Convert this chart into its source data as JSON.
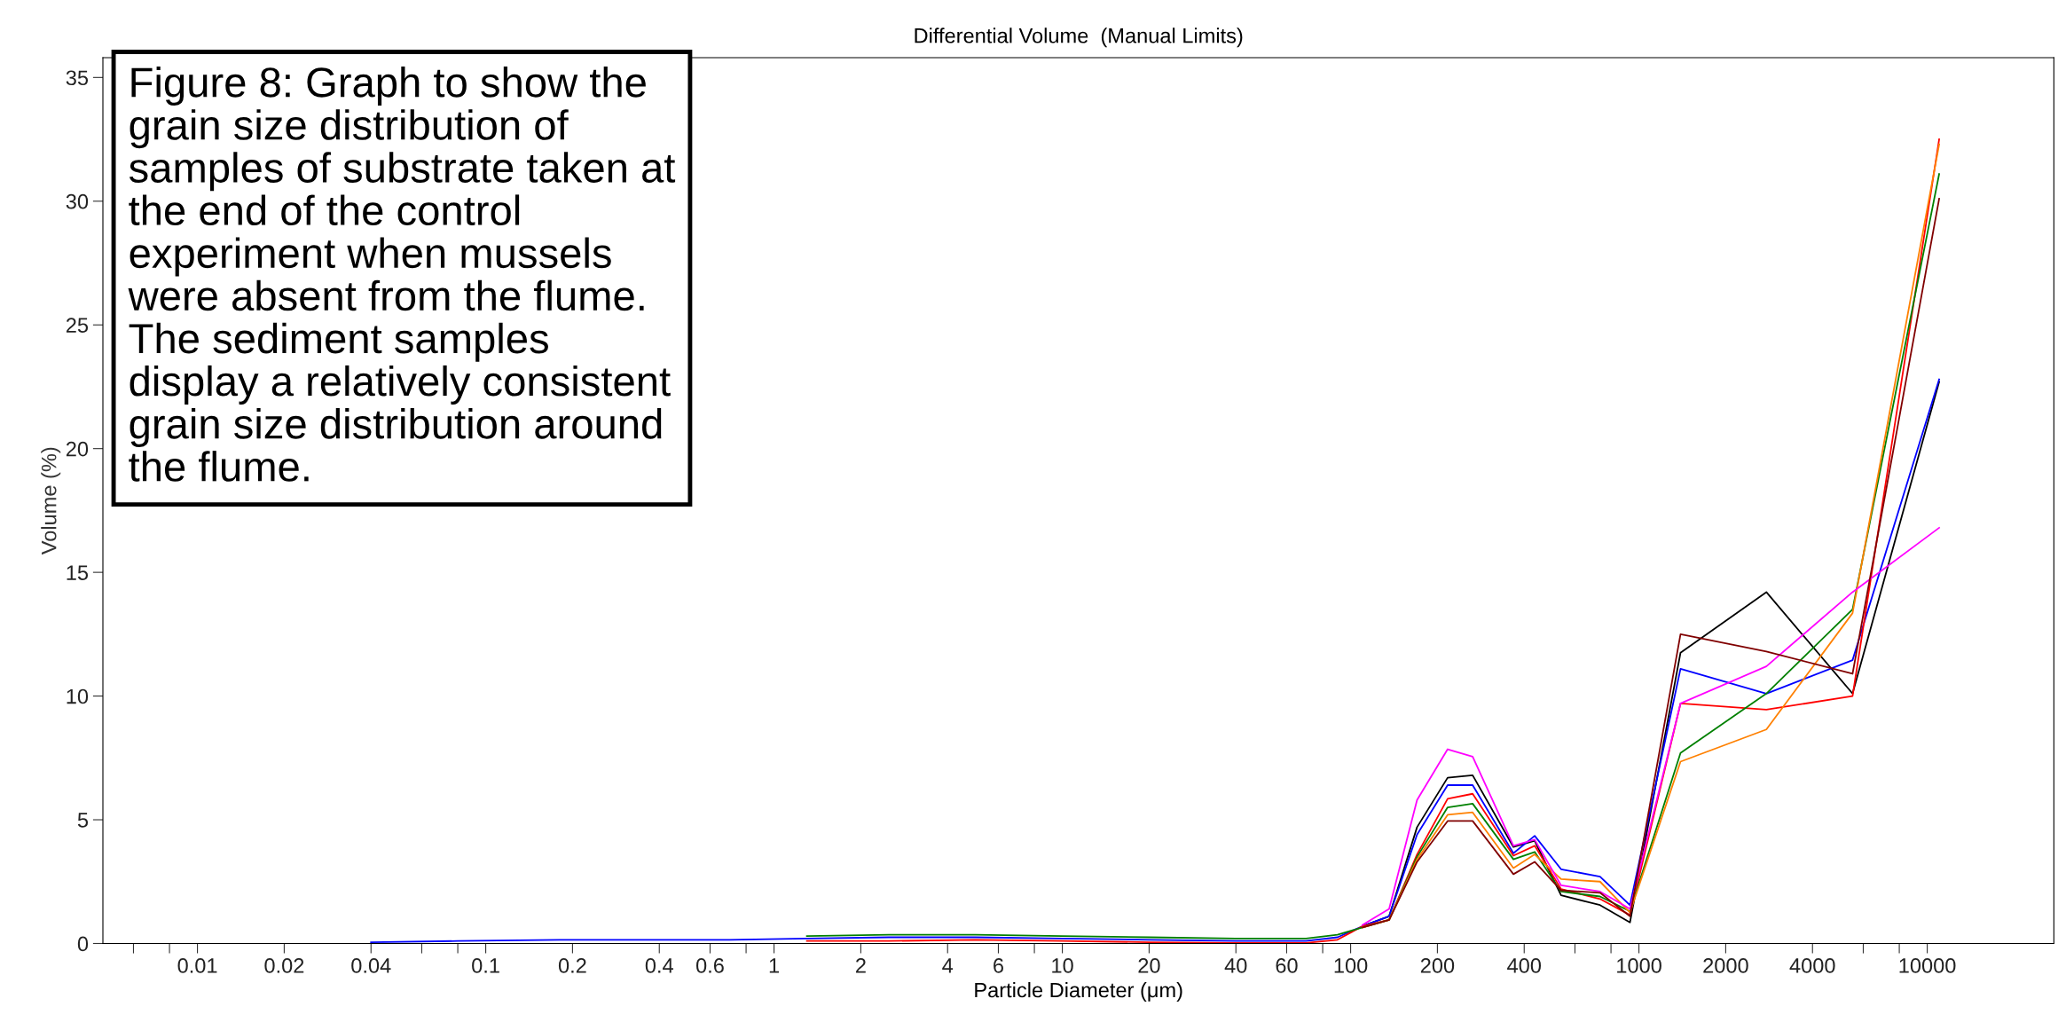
{
  "chart_data": {
    "type": "line",
    "title": "Differential Volume  (Manual Limits)",
    "xlabel": "Particle Diameter (μm)",
    "ylabel": "Volume (%)",
    "log": "x",
    "grid": false,
    "legend": false,
    "marker": "none",
    "line_style": "solid",
    "xlim": [
      0.0047,
      27500
    ],
    "ylim": [
      0,
      35.8
    ],
    "xticks": [
      {
        "value": 0.006,
        "label": null
      },
      {
        "value": 0.008,
        "label": null
      },
      0.01,
      0.02,
      0.04,
      {
        "value": 0.06,
        "label": null
      },
      {
        "value": 0.08,
        "label": null
      },
      0.1,
      0.2,
      0.4,
      0.6,
      {
        "value": 0.8,
        "label": null
      },
      1,
      2,
      4,
      6,
      {
        "value": 8,
        "label": null
      },
      10,
      20,
      40,
      60,
      {
        "value": 80,
        "label": null
      },
      100,
      200,
      400,
      {
        "value": 600,
        "label": null
      },
      {
        "value": 800,
        "label": null
      },
      1000,
      2000,
      4000,
      {
        "value": 6000,
        "label": null
      },
      {
        "value": 8000,
        "label": null
      },
      10000
    ],
    "yticks": [
      0,
      5,
      10,
      15,
      20,
      25,
      30,
      35
    ],
    "x": [
      0.04,
      0.08,
      0.18,
      0.35,
      0.7,
      1.3,
      2.5,
      5,
      10,
      20,
      40,
      70,
      90,
      110,
      136,
      170,
      217,
      265,
      367,
      435,
      537,
      733,
      931,
      1394,
      2767,
      5508,
      11000
    ],
    "series": [
      {
        "color": "#000000",
        "values": [
          null,
          null,
          null,
          null,
          null,
          null,
          null,
          null,
          null,
          null,
          null,
          null,
          null,
          0.7,
          1.1,
          4.7,
          6.7,
          6.8,
          3.9,
          4.15,
          1.95,
          1.55,
          0.85,
          11.75,
          14.2,
          10.1,
          22.7
        ]
      },
      {
        "color": "#0000ff",
        "values": [
          0.05,
          0.1,
          0.15,
          0.15,
          0.15,
          0.2,
          0.25,
          0.25,
          0.2,
          0.15,
          0.1,
          0.1,
          0.25,
          0.7,
          1.1,
          4.4,
          6.4,
          6.4,
          3.65,
          4.35,
          3.0,
          2.7,
          1.55,
          11.1,
          10.1,
          11.45,
          22.8
        ]
      },
      {
        "color": "#ff0000",
        "values": [
          null,
          null,
          null,
          null,
          null,
          0.1,
          0.1,
          0.15,
          0.1,
          0.05,
          0.02,
          0.02,
          0.15,
          0.7,
          0.95,
          3.6,
          5.85,
          6.05,
          3.55,
          3.95,
          2.2,
          1.8,
          1.15,
          9.7,
          9.45,
          10.0,
          32.5
        ]
      },
      {
        "color": "#008000",
        "values": [
          null,
          null,
          null,
          null,
          null,
          0.3,
          0.35,
          0.35,
          0.3,
          0.25,
          0.2,
          0.2,
          0.35,
          0.65,
          0.95,
          3.5,
          5.5,
          5.65,
          3.4,
          3.7,
          2.1,
          1.9,
          1.3,
          7.7,
          10.1,
          13.5,
          31.1
        ]
      },
      {
        "color": "#ff8000",
        "values": [
          null,
          null,
          null,
          null,
          null,
          null,
          null,
          null,
          null,
          null,
          null,
          null,
          null,
          0.65,
          0.95,
          3.4,
          5.2,
          5.3,
          3.05,
          3.6,
          2.6,
          2.5,
          1.25,
          7.35,
          8.65,
          13.35,
          32.3
        ]
      },
      {
        "color": "#ff00ff",
        "values": [
          null,
          null,
          null,
          null,
          null,
          null,
          null,
          null,
          null,
          null,
          null,
          null,
          null,
          0.75,
          1.4,
          5.8,
          7.85,
          7.55,
          3.95,
          4.2,
          2.35,
          2.1,
          1.4,
          9.7,
          11.2,
          14.2,
          16.8
        ]
      },
      {
        "color": "#800000",
        "values": [
          null,
          null,
          null,
          null,
          null,
          null,
          null,
          null,
          null,
          null,
          null,
          null,
          null,
          0.65,
          0.95,
          3.3,
          4.95,
          4.95,
          2.8,
          3.3,
          2.15,
          2.05,
          1.1,
          12.5,
          11.8,
          10.9,
          30.1
        ]
      }
    ],
    "annotations": [
      "Figure 8: Graph to show the\ngrain size distribution of\nsamples of substrate taken at\nthe end of the control\nexperiment when mussels\nwere absent from the flume.\nThe sediment samples\ndisplay a relatively consistent\ngrain size distribution around\nthe flume."
    ]
  }
}
